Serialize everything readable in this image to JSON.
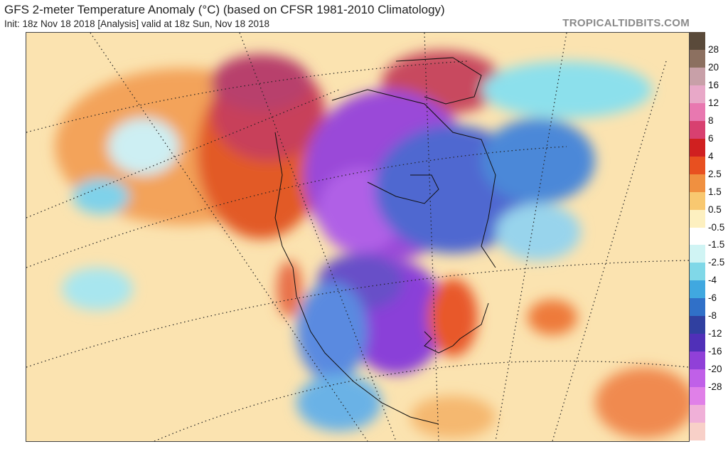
{
  "header": {
    "title": "GFS 2-meter Temperature Anomaly (°C) (based on CFSR 1981-2010 Climatology)",
    "subtitle": "Init: 18z Nov 18 2018   [Analysis]   valid at 18z Sun, Nov 18 2018",
    "credit": "TROPICALTIDBITS.COM"
  },
  "legend": {
    "ticks": [
      "28",
      "20",
      "16",
      "12",
      "8",
      "6",
      "4",
      "2.5",
      "1.5",
      "0.5",
      "-0.5",
      "-1.5",
      "-2.5",
      "-4",
      "-6",
      "-8",
      "-12",
      "-16",
      "-20",
      "-28"
    ],
    "colors": [
      "#5a4a3a",
      "#8c7060",
      "#c8a0a8",
      "#e8a8c8",
      "#e878b0",
      "#d84070",
      "#d02020",
      "#e85020",
      "#f09040",
      "#f8c870",
      "#fdf0c0",
      "#ffffff",
      "#d0f4f4",
      "#80d8e8",
      "#40a8e0",
      "#3070c8",
      "#3040a0",
      "#5030b8",
      "#9040d8",
      "#c060e8",
      "#e080e8",
      "#f0b0d8",
      "#f8d0c8"
    ]
  }
}
